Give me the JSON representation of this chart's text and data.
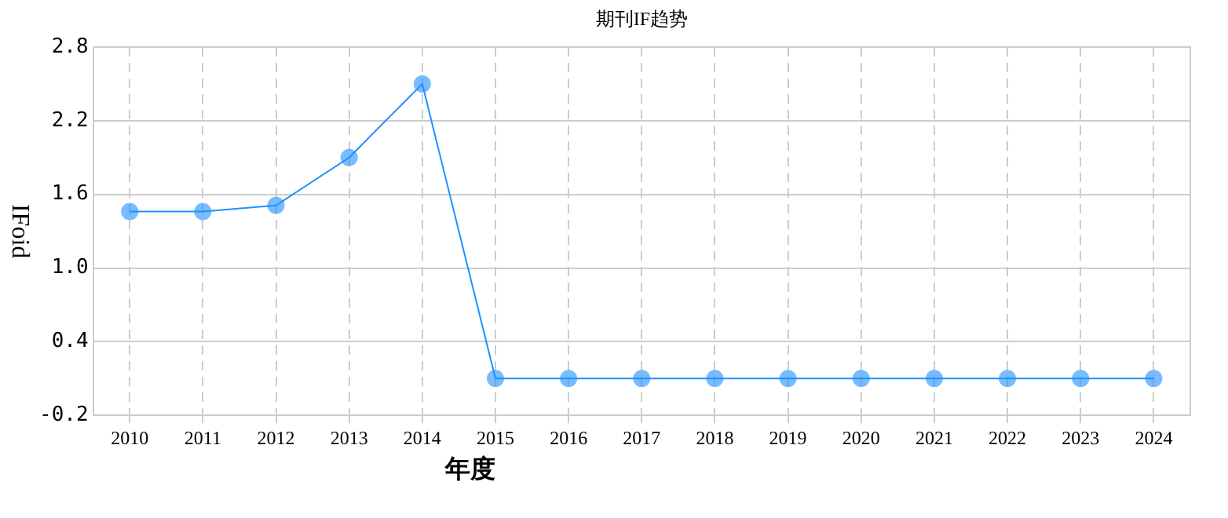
{
  "chart_data": {
    "type": "line",
    "title": "期刊IF趋势",
    "xlabel": "年度",
    "ylabel": "IFoid",
    "categories": [
      "2010",
      "2011",
      "2012",
      "2013",
      "2014",
      "2015",
      "2016",
      "2017",
      "2018",
      "2019",
      "2020",
      "2021",
      "2022",
      "2023",
      "2024"
    ],
    "series": [
      {
        "color": "#1e90ff",
        "values": [
          1.46,
          1.46,
          1.51,
          1.9,
          2.5,
          0.1,
          0.1,
          0.1,
          0.1,
          0.1,
          0.1,
          0.1,
          0.1,
          0.1,
          0.1
        ]
      }
    ],
    "ylim": [
      -0.2,
      2.8
    ],
    "yticks": [
      -0.2,
      0.4,
      {
        "value": 1,
        "label": "1.0"
      },
      1.6,
      2.2,
      2.8
    ],
    "grid": true,
    "marker": "circle",
    "line_style": "solid",
    "legend": false
  }
}
